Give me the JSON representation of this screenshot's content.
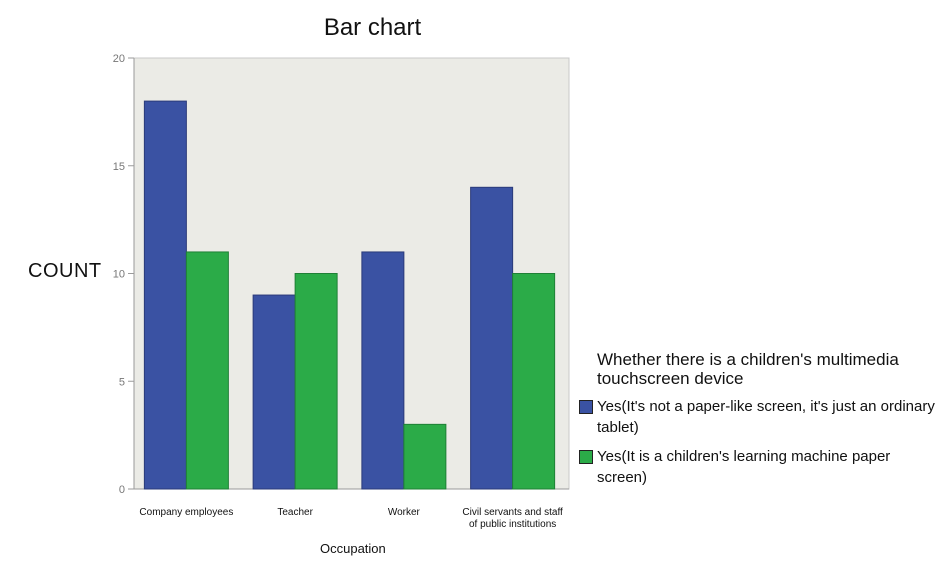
{
  "chart_data": {
    "type": "bar",
    "title": "Bar chart",
    "xlabel": "Occupation",
    "ylabel": "COUNT",
    "categories": [
      "Company employees",
      "Teacher",
      "Worker",
      "Civil servants and staff of public institutions"
    ],
    "category_lines": [
      [
        "Company employees"
      ],
      [
        "Teacher"
      ],
      [
        "Worker"
      ],
      [
        "Civil servants and staff",
        "of public institutions"
      ]
    ],
    "series": [
      {
        "name": "Yes(It's not a paper-like screen, it's just an ordinary tablet)",
        "values": [
          18,
          9,
          11,
          14
        ],
        "color": "#3a52a3"
      },
      {
        "name": "Yes(It is a children's learning machine paper screen)",
        "values": [
          11,
          10,
          3,
          10
        ],
        "color": "#2bab48"
      }
    ],
    "ylim": [
      0,
      20
    ],
    "yticks": [
      0,
      5,
      10,
      15,
      20
    ],
    "legend_title": "Whether there is a children's multimedia touchscreen device",
    "legend_position": "right",
    "plot_background": "#ebebe6"
  }
}
